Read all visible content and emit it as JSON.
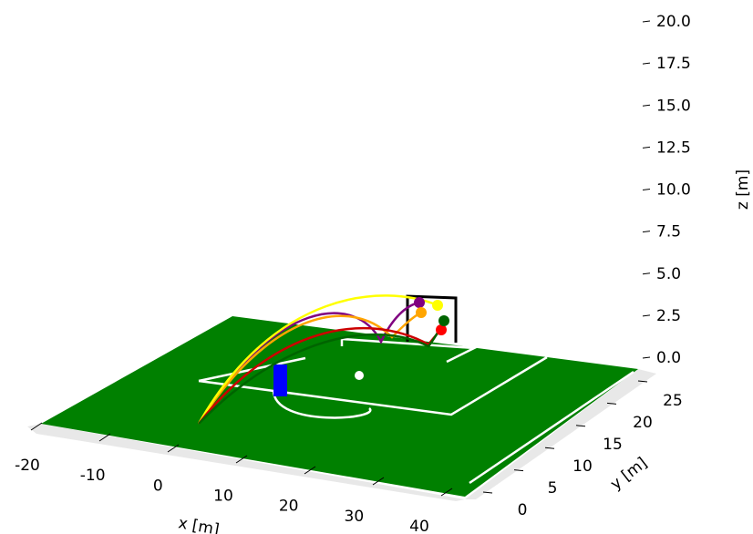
{
  "chart_data": {
    "type": "pitch3d",
    "xlabel": "x [m]",
    "ylabel": "y [m]",
    "zlabel": "z [m]",
    "xlim": [
      -20,
      40
    ],
    "ylim": [
      0,
      25
    ],
    "zlim": [
      0,
      20
    ],
    "xticks": [
      -20,
      -10,
      0,
      10,
      20,
      30,
      40
    ],
    "yticks": [
      0,
      5,
      10,
      15,
      20,
      25
    ],
    "zticks": [
      {
        "value": 0,
        "label": "0.0"
      },
      2.5,
      {
        "value": 5,
        "label": "5.0"
      },
      7.5,
      {
        "value": 10,
        "label": "10.0"
      },
      12.5,
      {
        "value": 15,
        "label": "15.0"
      },
      17.5,
      {
        "value": 20,
        "label": "20.0"
      }
    ]
  }
}
